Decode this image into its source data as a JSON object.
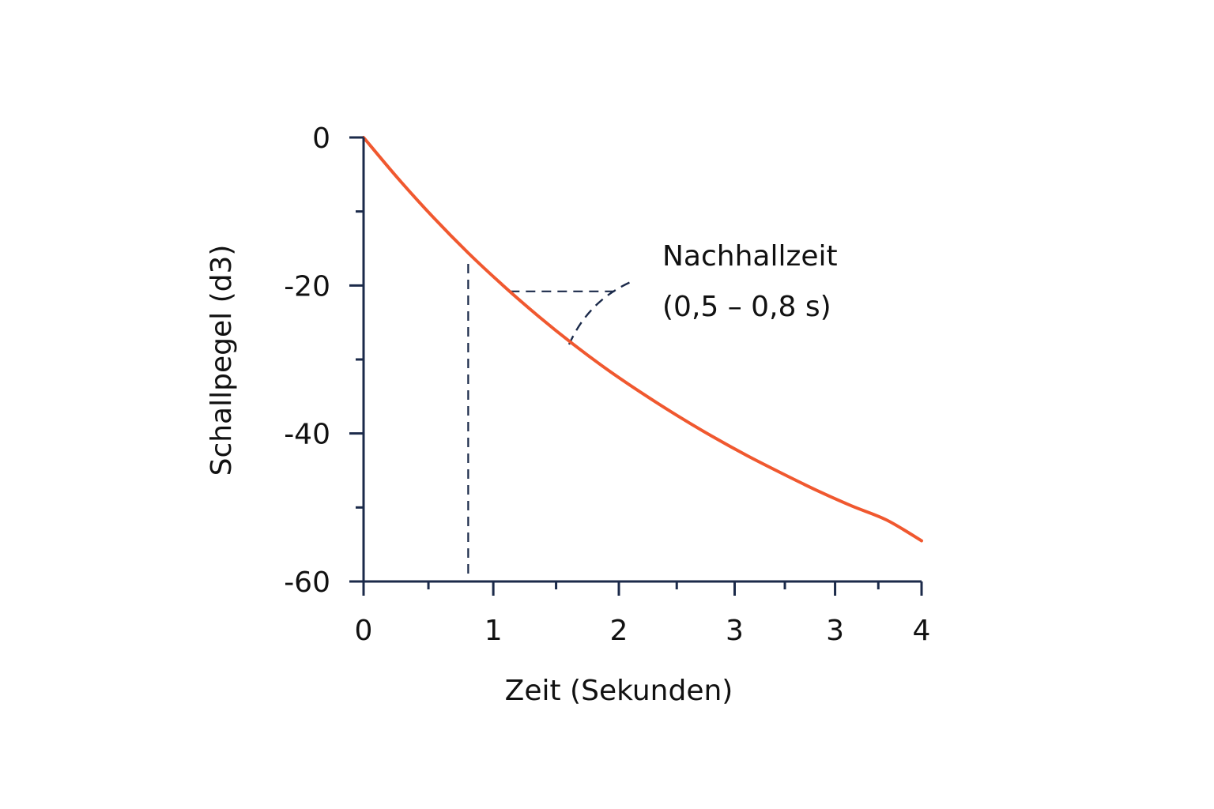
{
  "chart_data": {
    "type": "line",
    "title": "",
    "xlabel": "Zeit (Sekunden)",
    "ylabel": "Schallpegel (d3)",
    "xlim": [
      0,
      4
    ],
    "ylim": [
      -60,
      0
    ],
    "x_ticks": [
      0,
      0.93,
      1.83,
      2.66,
      3.38,
      4.0
    ],
    "x_tick_labels": [
      "0",
      "1",
      "2",
      "3",
      "3",
      "4"
    ],
    "y_ticks": [
      0,
      -20,
      -40,
      -60
    ],
    "y_tick_labels": [
      "0",
      "-20",
      "-40",
      "-60"
    ],
    "grid": false,
    "legend": "none",
    "colors": {
      "curve": "#f0582f",
      "axis": "#1b2a4a",
      "annotation": "#1b2a4a",
      "text": "#111111"
    },
    "series": [
      {
        "x": [
          0,
          0.25,
          0.5,
          0.75,
          1.0,
          1.25,
          1.5,
          1.75,
          2.0,
          2.25,
          2.5,
          2.75,
          3.0,
          3.25,
          3.5,
          3.75,
          4.0
        ],
        "values": [
          0,
          -5.6,
          -10.8,
          -15.6,
          -20.0,
          -24.1,
          -27.9,
          -31.4,
          -34.6,
          -37.6,
          -40.4,
          -43.0,
          -45.4,
          -47.7,
          -49.8,
          -51.7,
          -54.5
        ]
      }
    ],
    "annotation": {
      "line1": "Nachhallzeit",
      "line2": "(0,5 – 0,8 s)",
      "vertical_marker_x": 0.75,
      "horizontal_marker_y": -20.8,
      "horizontal_marker_x_range": [
        1.05,
        1.8
      ]
    }
  }
}
